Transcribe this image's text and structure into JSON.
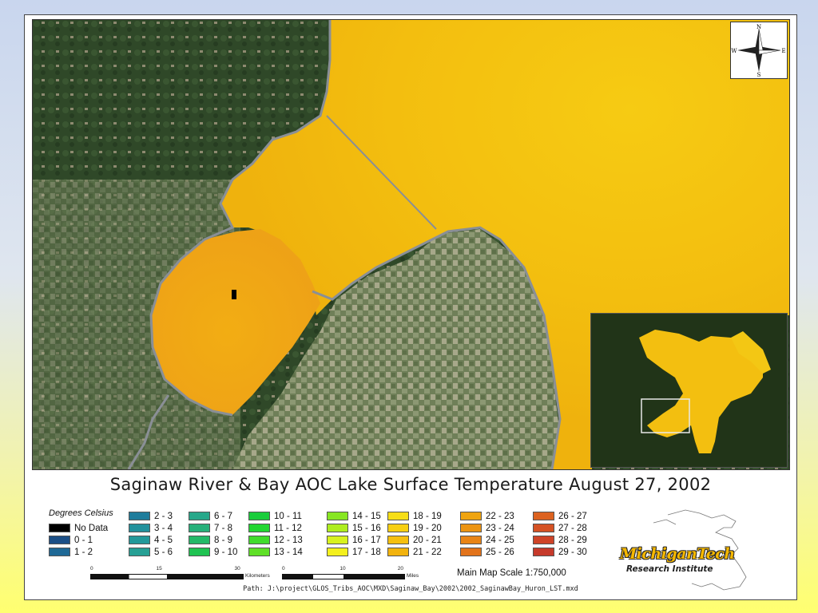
{
  "map": {
    "title": "Saginaw River & Bay AOC Lake Surface Temperature August 27, 2002",
    "compass": {
      "n": "N",
      "s": "S",
      "e": "E",
      "w": "W",
      "icon": "compass-rose-icon"
    },
    "scale_text": "Main Map Scale 1:750,000",
    "path_text": "Path: J:\\project\\GLOS_Tribs_AOC\\MXD\\Saginaw_Bay\\2002\\2002_SaginawBay_Huron_LST.mxd",
    "scalebar_km": {
      "ticks": [
        "0",
        "15",
        "30"
      ],
      "unit": "Kilometers"
    },
    "scalebar_mi": {
      "ticks": [
        "0",
        "10",
        "20"
      ],
      "unit": "Miles"
    },
    "logo": {
      "name": "MichiganTech",
      "sub": "Research Institute",
      "icon": "michigan-outline-icon"
    }
  },
  "legend": {
    "title": "Degrees Celsius",
    "columns": [
      [
        {
          "label": "No Data",
          "color": "#000000"
        },
        {
          "label": "0 - 1",
          "color": "#1c4f86"
        },
        {
          "label": "1 - 2",
          "color": "#1f6996"
        }
      ],
      [
        {
          "label": "2 - 3",
          "color": "#1f7d9c"
        },
        {
          "label": "3 - 4",
          "color": "#22919c"
        },
        {
          "label": "4 - 5",
          "color": "#23999a"
        },
        {
          "label": "5 - 6",
          "color": "#27a095"
        }
      ],
      [
        {
          "label": "6 - 7",
          "color": "#27a88a"
        },
        {
          "label": "7 - 8",
          "color": "#27b07a"
        },
        {
          "label": "8 - 9",
          "color": "#24b968"
        },
        {
          "label": "9 - 10",
          "color": "#1fc352"
        }
      ],
      [
        {
          "label": "10 - 11",
          "color": "#1acd3c"
        },
        {
          "label": "11 - 12",
          "color": "#22d631"
        },
        {
          "label": "12 - 13",
          "color": "#41dc2b"
        },
        {
          "label": "13 - 14",
          "color": "#5fe027"
        }
      ],
      [
        {
          "label": "14 - 15",
          "color": "#87e623"
        },
        {
          "label": "15 - 16",
          "color": "#aeed1f"
        },
        {
          "label": "16 - 17",
          "color": "#d8f21f"
        },
        {
          "label": "17 - 18",
          "color": "#f4f01d"
        }
      ],
      [
        {
          "label": "18 - 19",
          "color": "#f6de17"
        },
        {
          "label": "19 - 20",
          "color": "#f7cf12"
        },
        {
          "label": "20 - 21",
          "color": "#f5c010"
        },
        {
          "label": "21 - 22",
          "color": "#f2b30e"
        }
      ],
      [
        {
          "label": "22 - 23",
          "color": "#efa410"
        },
        {
          "label": "23 - 24",
          "color": "#ec9412"
        },
        {
          "label": "24 - 25",
          "color": "#e88416"
        },
        {
          "label": "25 - 26",
          "color": "#e2731b"
        }
      ],
      [
        {
          "label": "26 - 27",
          "color": "#dc6220"
        },
        {
          "label": "27 - 28",
          "color": "#d55224"
        },
        {
          "label": "28 - 29",
          "color": "#ce4428"
        },
        {
          "label": "29 - 30",
          "color": "#c63a2b"
        }
      ]
    ]
  }
}
